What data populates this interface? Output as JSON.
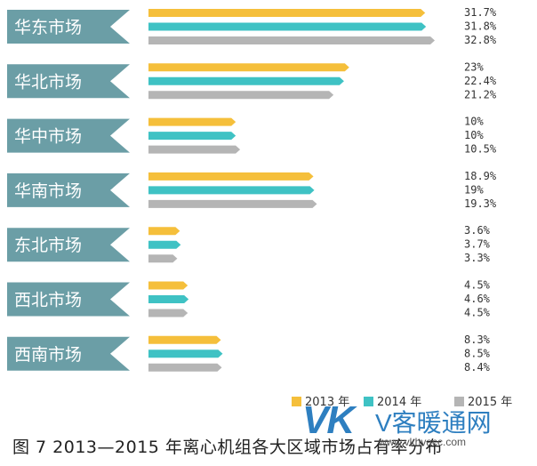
{
  "chart_data": {
    "type": "bar",
    "orientation": "horizontal",
    "categories": [
      "华东市场",
      "华北市场",
      "华中市场",
      "华南市场",
      "东北市场",
      "西北市场",
      "西南市场"
    ],
    "series": [
      {
        "name": "2013 年",
        "color": "#f5bf3b",
        "values": [
          31.7,
          23,
          10,
          18.9,
          3.6,
          4.5,
          8.3
        ],
        "labels": [
          "31.7%",
          "23%",
          "10%",
          "18.9%",
          "3.6%",
          "4.5%",
          "8.3%"
        ]
      },
      {
        "name": "2014 年",
        "color": "#3fc2c4",
        "values": [
          31.8,
          22.4,
          10,
          19,
          3.7,
          4.6,
          8.5
        ],
        "labels": [
          "31.8%",
          "22.4%",
          "10%",
          "19%",
          "3.7%",
          "4.6%",
          "8.5%"
        ]
      },
      {
        "name": "2015 年",
        "color": "#b5b5b5",
        "values": [
          32.8,
          21.2,
          10.5,
          19.3,
          3.3,
          4.5,
          8.4
        ],
        "labels": [
          "32.8%",
          "21.2%",
          "10.5%",
          "19.3%",
          "3.3%",
          "4.5%",
          "8.4%"
        ]
      }
    ],
    "xlim": [
      0,
      33
    ],
    "legend": "bottom-right",
    "grid": false,
    "label_color": "#6b9ea6"
  },
  "caption": "图 7   2013—2015 年离心机组各大区域市场占有率分布",
  "watermark": {
    "logo": "VK",
    "text": "V客暖通网",
    "url": "www.vkhvacc.com"
  }
}
